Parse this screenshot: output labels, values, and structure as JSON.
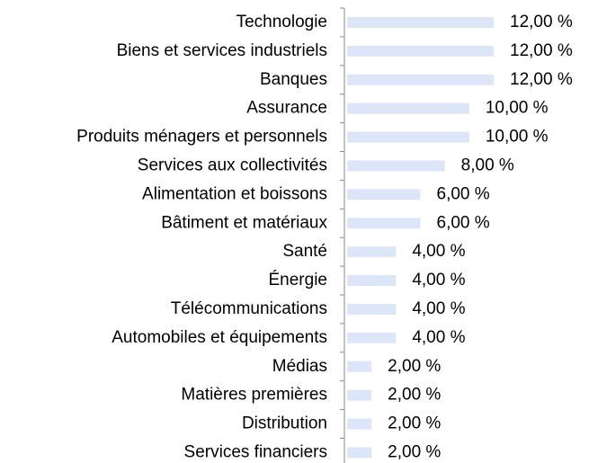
{
  "chart_data": {
    "type": "bar",
    "orientation": "horizontal",
    "categories": [
      "Technologie",
      "Biens et services industriels",
      "Banques",
      "Assurance",
      "Produits ménagers et personnels",
      "Services aux collectivités",
      "Alimentation et boissons",
      "Bâtiment et matériaux",
      "Santé",
      "Énergie",
      "Télécommunications",
      "Automobiles et équipements",
      "Médias",
      "Matières premières",
      "Distribution",
      "Services financiers"
    ],
    "values": [
      12,
      12,
      12,
      10,
      10,
      8,
      6,
      6,
      4,
      4,
      4,
      4,
      2,
      2,
      2,
      2
    ],
    "value_labels": [
      "12,00 %",
      "12,00 %",
      "12,00 %",
      "10,00 %",
      "10,00 %",
      "8,00 %",
      "6,00 %",
      "6,00 %",
      "4,00 %",
      "4,00 %",
      "4,00 %",
      "4,00 %",
      "2,00 %",
      "2,00 %",
      "2,00 %",
      "2,00 %"
    ],
    "color": "#dde6f8"
  }
}
